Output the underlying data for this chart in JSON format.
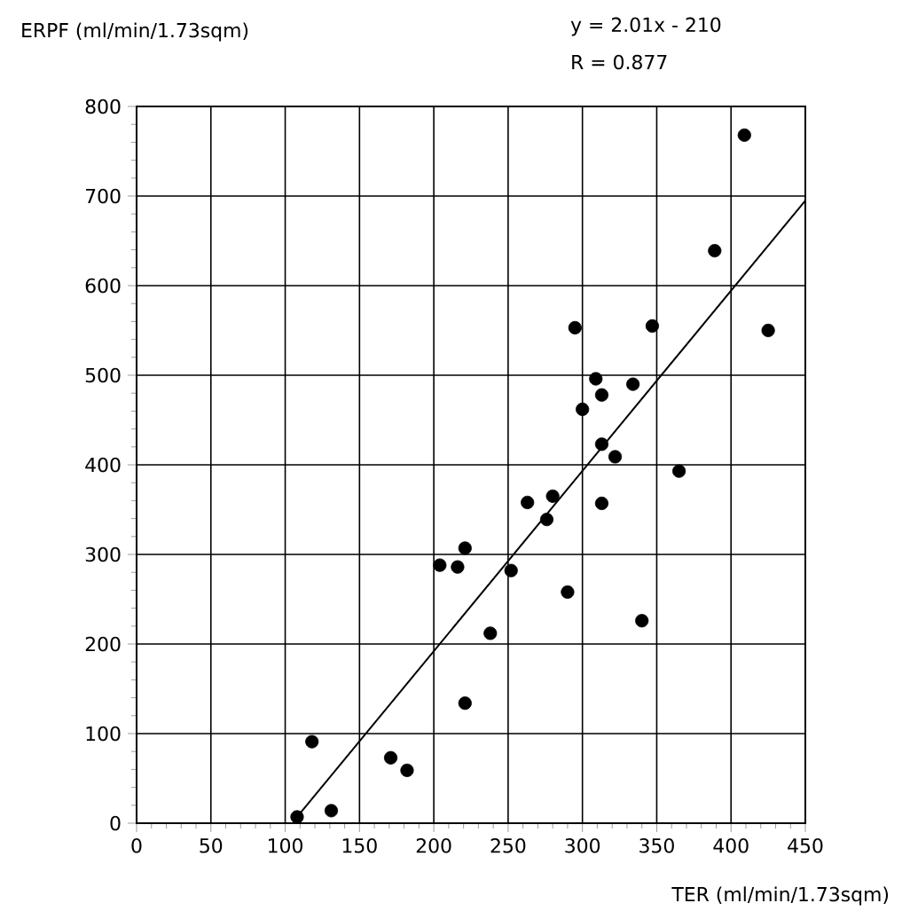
{
  "chart_data": {
    "type": "scatter",
    "xlabel": "TER (ml/min/1.73sqm)",
    "ylabel": "ERPF (ml/min/1.73sqm)",
    "annotations": [
      "y = 2.01x - 210",
      "R = 0.877"
    ],
    "xlim": [
      0,
      450
    ],
    "xticks": [
      0,
      50,
      100,
      150,
      200,
      250,
      300,
      350,
      400,
      450
    ],
    "ylim": [
      0,
      800
    ],
    "yticks": [
      0,
      100,
      200,
      300,
      400,
      500,
      600,
      700,
      800
    ],
    "grid": true,
    "series": [
      {
        "marker": "circle",
        "color": "#000000",
        "x": [
          108,
          118,
          131,
          171,
          182,
          204,
          216,
          221,
          221,
          238,
          409,
          389,
          425,
          295,
          347,
          309,
          313,
          334,
          300,
          313,
          322,
          365,
          263,
          280,
          276,
          313,
          252,
          290,
          340
        ],
        "values": [
          7,
          91,
          14,
          73,
          59,
          288,
          286,
          307,
          134,
          212,
          768,
          639,
          550,
          553,
          555,
          496,
          478,
          490,
          462,
          423,
          409,
          393,
          358,
          365,
          339,
          357,
          282,
          258,
          226
        ]
      },
      {
        "type": "line",
        "color": "#000000",
        "line_style": "solid",
        "x": [
          110,
          450
        ],
        "values": [
          11,
          695
        ]
      }
    ]
  }
}
